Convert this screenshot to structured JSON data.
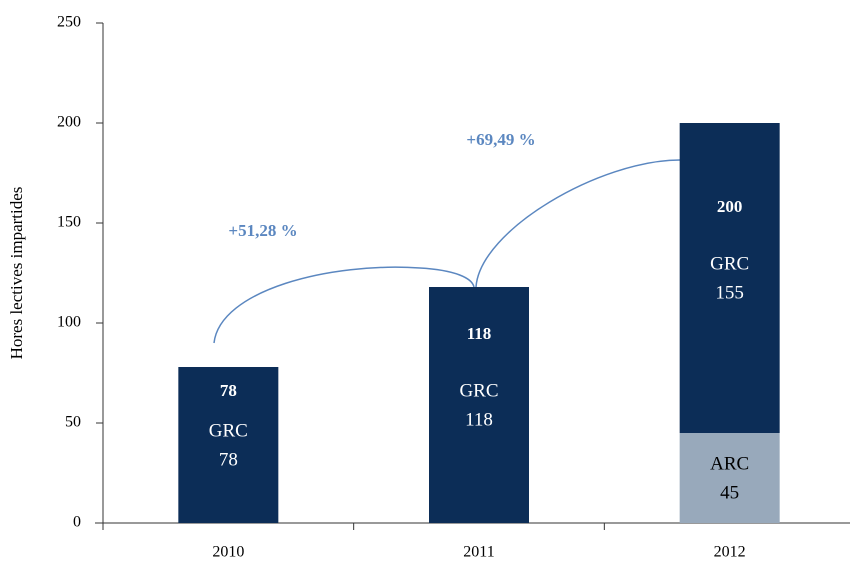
{
  "chart_data": {
    "type": "stacked_bar",
    "y_label": "Hores lectives impartides",
    "categories": [
      "2010",
      "2011",
      "2012"
    ],
    "series": [
      {
        "name": "ARC",
        "color": "#98a9bb",
        "values": [
          null,
          null,
          45
        ]
      },
      {
        "name": "GRC",
        "color": "#0c2d57",
        "values": [
          78,
          118,
          155
        ]
      }
    ],
    "totals": [
      78,
      118,
      200
    ],
    "annotations": [
      "+51,28 %",
      "+69,49 %"
    ],
    "annotation_color": "#5b87c0",
    "ylim": [
      0,
      250
    ],
    "yticks": [
      0,
      50,
      100,
      150,
      200,
      250
    ]
  }
}
